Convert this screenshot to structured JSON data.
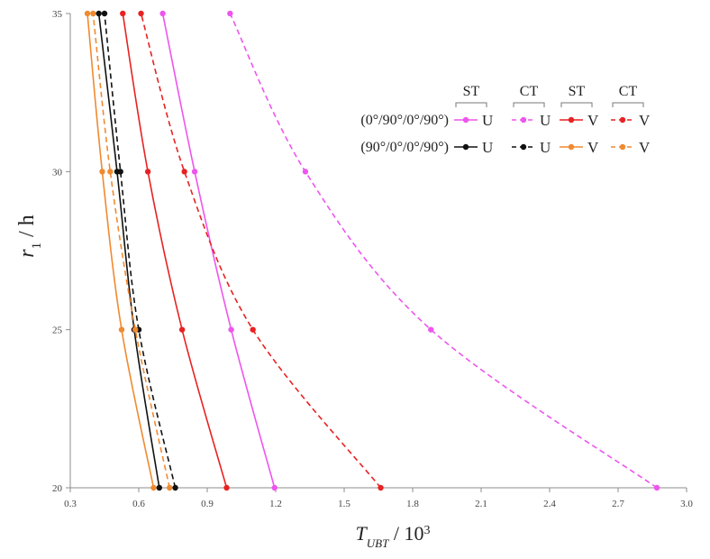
{
  "chart_data": {
    "type": "line",
    "title": "",
    "xlabel": {
      "main": "T",
      "sub": "UBT",
      "rest": " / 10",
      "sup": "3"
    },
    "ylabel": {
      "main": "r",
      "sub": "1",
      "rest": " / h"
    },
    "xlim": [
      0.3,
      3.0
    ],
    "ylim": [
      20,
      35
    ],
    "xticks": [
      "0.3",
      "0.6",
      "0.9",
      "1.2",
      "1.5",
      "1.8",
      "2.1",
      "2.4",
      "2.7",
      "3.0"
    ],
    "yticks": [
      "20",
      "25",
      "30",
      "35"
    ],
    "y": [
      20,
      25,
      30,
      35
    ],
    "colors": {
      "magenta": "#ee55ee",
      "red": "#e82222",
      "black": "#111111",
      "orange": "#f08a30"
    },
    "series": [
      {
        "name": "(0°/90°/0°/90°) ST U",
        "color": "magenta",
        "dash": false,
        "x": [
          1.195,
          1.005,
          0.845,
          0.705
        ]
      },
      {
        "name": "(0°/90°/0°/90°) CT U",
        "color": "magenta",
        "dash": true,
        "x": [
          2.87,
          1.88,
          1.33,
          1.0
        ]
      },
      {
        "name": "(0°/90°/0°/90°) ST V",
        "color": "red",
        "dash": false,
        "x": [
          0.985,
          0.79,
          0.64,
          0.53
        ]
      },
      {
        "name": "(0°/90°/0°/90°) CT V",
        "color": "red",
        "dash": true,
        "x": [
          1.66,
          1.1,
          0.8,
          0.61
        ]
      },
      {
        "name": "(90°/0°/0°/90°) ST U",
        "color": "black",
        "dash": false,
        "x": [
          0.69,
          0.58,
          0.505,
          0.425
        ]
      },
      {
        "name": "(90°/0°/0°/90°) CT U",
        "color": "black",
        "dash": true,
        "x": [
          0.76,
          0.6,
          0.52,
          0.45
        ]
      },
      {
        "name": "(90°/0°/0°/90°) ST V",
        "color": "orange",
        "dash": false,
        "x": [
          0.665,
          0.525,
          0.44,
          0.375
        ]
      },
      {
        "name": "(90°/0°/0°/90°) CT V",
        "color": "orange",
        "dash": true,
        "x": [
          0.735,
          0.585,
          0.475,
          0.4
        ]
      }
    ],
    "legend": {
      "placement": "top-right",
      "column_headers": [
        "ST",
        "CT",
        "ST",
        "CT"
      ],
      "rows": [
        {
          "label": "(0°/90°/0°/90°)",
          "letters": [
            "U",
            "U",
            "V",
            "V"
          ],
          "series": [
            0,
            1,
            2,
            3
          ]
        },
        {
          "label": "(90°/0°/0°/90°)",
          "letters": [
            "U",
            "U",
            "V",
            "V"
          ],
          "series": [
            4,
            5,
            6,
            7
          ]
        }
      ]
    }
  }
}
